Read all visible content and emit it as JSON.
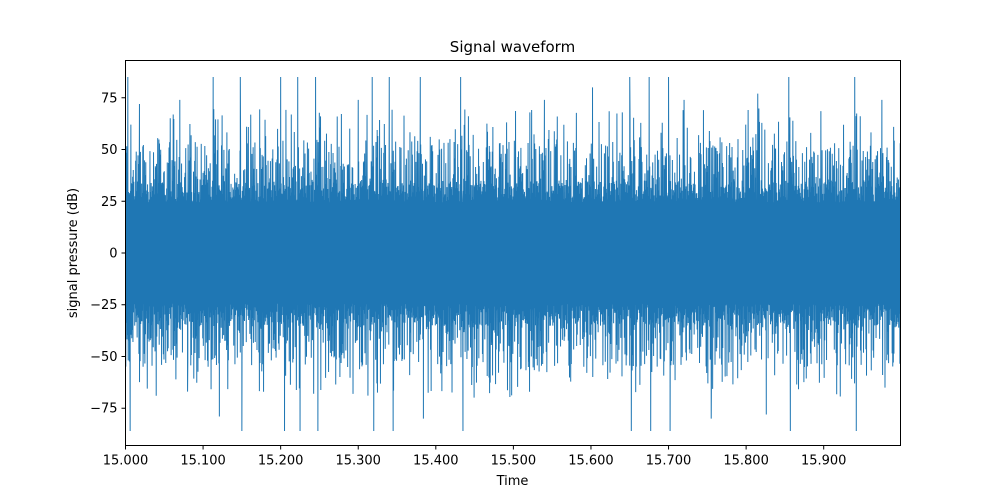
{
  "chart_data": {
    "type": "line",
    "title": "Signal waveform",
    "xlabel": "Time",
    "ylabel": "signal pressure (dB)",
    "xlim": [
      15.0,
      15.999
    ],
    "ylim": [
      -93,
      93
    ],
    "x_ticks": [
      15.0,
      15.1,
      15.2,
      15.3,
      15.4,
      15.5,
      15.6,
      15.7,
      15.8,
      15.9
    ],
    "x_tick_labels": [
      "15.000",
      "15.100",
      "15.200",
      "15.300",
      "15.400",
      "15.500",
      "15.600",
      "15.700",
      "15.800",
      "15.900"
    ],
    "y_ticks": [
      -75,
      -50,
      -25,
      0,
      25,
      50,
      75
    ],
    "y_tick_labels": [
      "−75",
      "−50",
      "−25",
      "0",
      "25",
      "50",
      "75"
    ],
    "grid": false,
    "series": [
      {
        "color": "#1f77b4",
        "x_range": [
          15.0,
          15.999
        ],
        "dense_band": [
          -35,
          35
        ],
        "typical_peak": [
          -55,
          55
        ],
        "max": 85,
        "min": -86,
        "peak_bursts": [
          {
            "x": 15.003,
            "y": 85
          },
          {
            "x": 15.006,
            "y": -86
          },
          {
            "x": 15.018,
            "y": 72
          },
          {
            "x": 15.07,
            "y": 74
          },
          {
            "x": 15.08,
            "y": -67
          },
          {
            "x": 15.113,
            "y": 85
          },
          {
            "x": 15.121,
            "y": -79
          },
          {
            "x": 15.148,
            "y": 85
          },
          {
            "x": 15.15,
            "y": -86
          },
          {
            "x": 15.2,
            "y": 85
          },
          {
            "x": 15.205,
            "y": -86
          },
          {
            "x": 15.222,
            "y": 85
          },
          {
            "x": 15.225,
            "y": -86
          },
          {
            "x": 15.245,
            "y": 85
          },
          {
            "x": 15.248,
            "y": -86
          },
          {
            "x": 15.3,
            "y": 74
          },
          {
            "x": 15.318,
            "y": 85
          },
          {
            "x": 15.32,
            "y": -86
          },
          {
            "x": 15.34,
            "y": 85
          },
          {
            "x": 15.345,
            "y": -86
          },
          {
            "x": 15.38,
            "y": 85
          },
          {
            "x": 15.384,
            "y": -80
          },
          {
            "x": 15.432,
            "y": 85
          },
          {
            "x": 15.435,
            "y": -86
          },
          {
            "x": 15.54,
            "y": 74
          },
          {
            "x": 15.602,
            "y": 80
          },
          {
            "x": 15.65,
            "y": 85
          },
          {
            "x": 15.652,
            "y": -86
          },
          {
            "x": 15.675,
            "y": 85
          },
          {
            "x": 15.677,
            "y": -86
          },
          {
            "x": 15.7,
            "y": 85
          },
          {
            "x": 15.702,
            "y": -86
          },
          {
            "x": 15.72,
            "y": 74
          },
          {
            "x": 15.745,
            "y": 69
          },
          {
            "x": 15.755,
            "y": -80
          },
          {
            "x": 15.815,
            "y": 77
          },
          {
            "x": 15.826,
            "y": -78
          },
          {
            "x": 15.855,
            "y": 85
          },
          {
            "x": 15.857,
            "y": -86
          },
          {
            "x": 15.94,
            "y": 85
          },
          {
            "x": 15.942,
            "y": -86
          },
          {
            "x": 15.975,
            "y": 74
          }
        ]
      }
    ]
  }
}
